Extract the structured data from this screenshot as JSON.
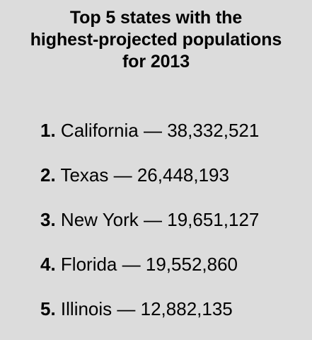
{
  "title": {
    "line1": "Top 5 states with the",
    "line2": "highest-projected populations",
    "line3": "for 2013"
  },
  "items": [
    {
      "rank": "1.",
      "state": "California",
      "population": "38,332,521"
    },
    {
      "rank": "2.",
      "state": "Texas",
      "population": "26,448,193"
    },
    {
      "rank": "3.",
      "state": "New York",
      "population": "19,651,127"
    },
    {
      "rank": "4.",
      "state": "Florida",
      "population": "19,552,860"
    },
    {
      "rank": "5.",
      "state": "Illinois",
      "population": "12,882,135"
    }
  ],
  "separator": "—",
  "colors": {
    "background": "#dcdcdc",
    "text": "#000000"
  }
}
